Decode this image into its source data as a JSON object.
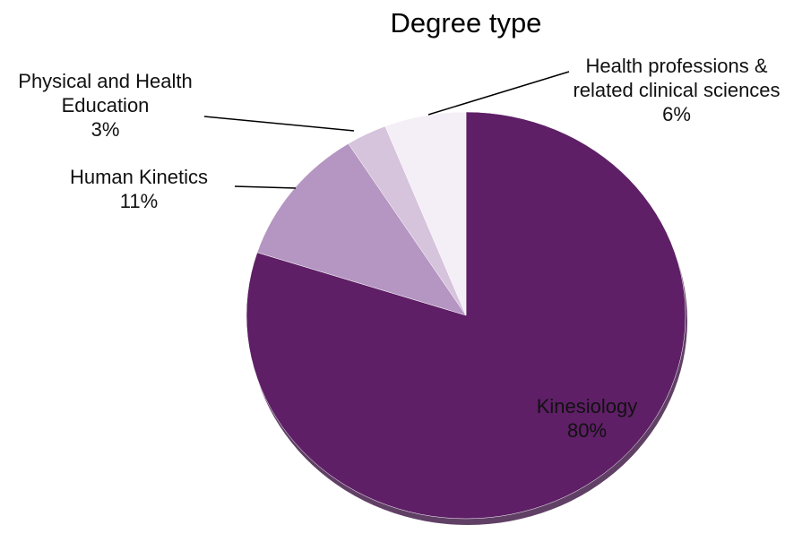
{
  "chart_data": {
    "type": "pie",
    "title": "Degree type",
    "categories": [
      "Kinesiology",
      "Human Kinetics",
      "Physical and Health Education",
      "Health professions & related clinical sciences"
    ],
    "values": [
      80,
      11,
      3,
      6
    ],
    "value_labels": [
      "80%",
      "11%",
      "3%",
      "6%"
    ],
    "colors": [
      "#5e1f66",
      "#b595c1",
      "#d6c3dc",
      "#f4eff6"
    ]
  }
}
